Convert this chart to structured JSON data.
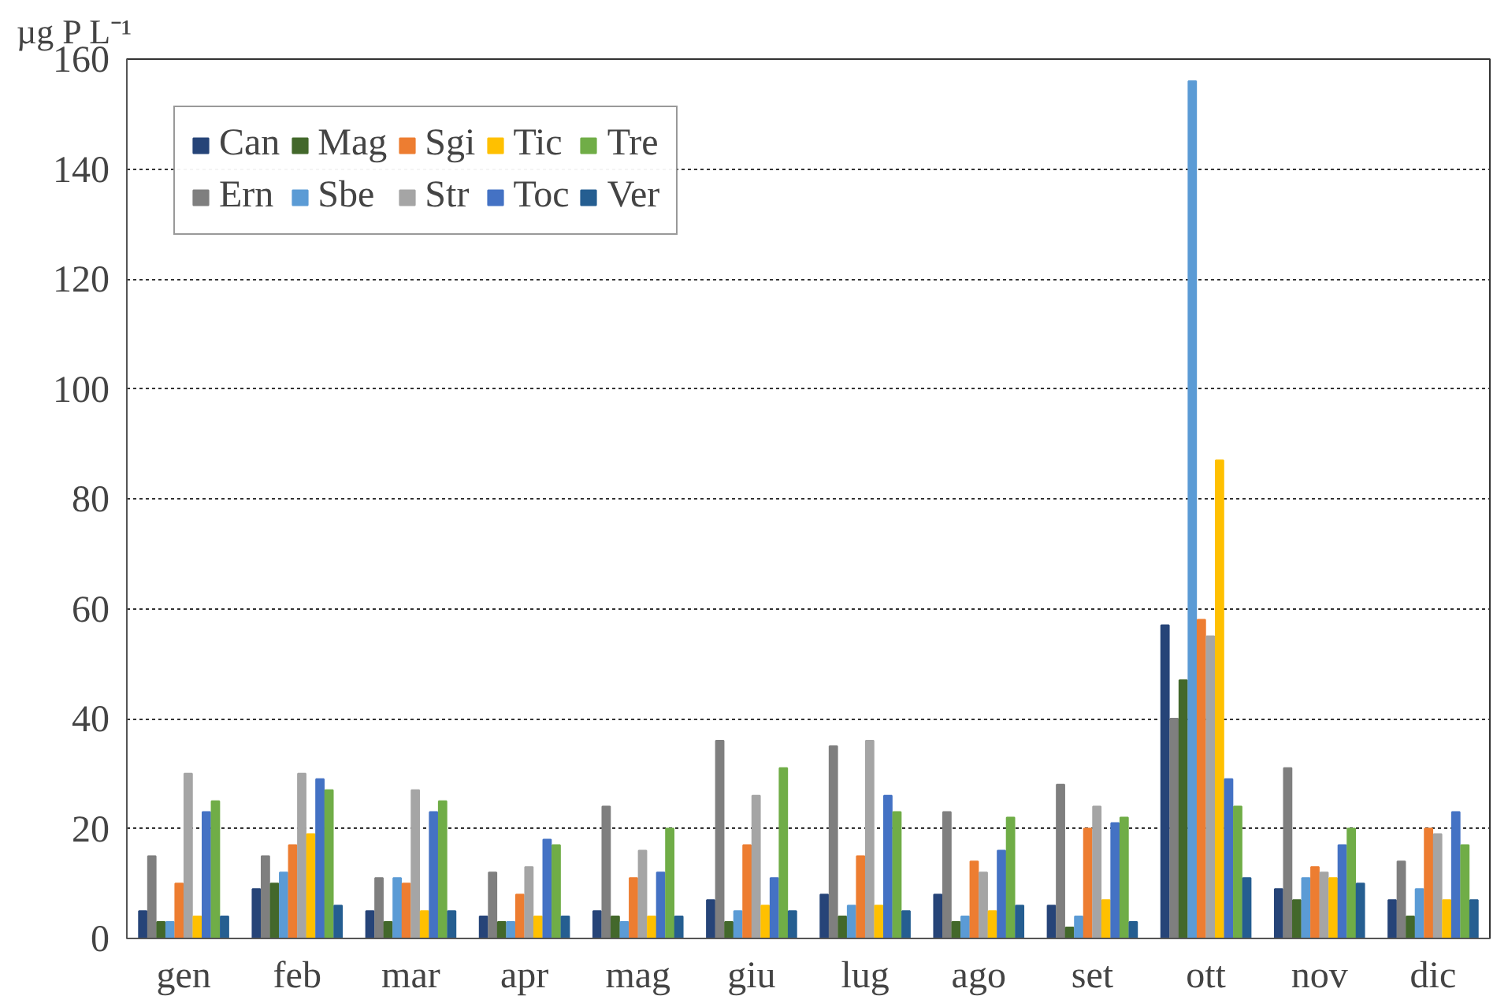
{
  "chart_data": {
    "type": "bar",
    "ylabel": "µg P L⁻¹",
    "categories": [
      "gen",
      "feb",
      "mar",
      "apr",
      "mag",
      "giu",
      "lug",
      "ago",
      "set",
      "ott",
      "nov",
      "dic"
    ],
    "series": [
      {
        "name": "Can",
        "color": "#264478",
        "values": [
          5,
          9,
          5,
          4,
          5,
          7,
          8,
          8,
          6,
          57,
          9,
          7
        ]
      },
      {
        "name": "Ern",
        "color": "#7f7f7f",
        "values": [
          15,
          15,
          11,
          12,
          24,
          36,
          35,
          23,
          28,
          40,
          31,
          14
        ]
      },
      {
        "name": "Mag",
        "color": "#43682b",
        "values": [
          3,
          10,
          3,
          3,
          4,
          3,
          4,
          3,
          2,
          47,
          7,
          4
        ]
      },
      {
        "name": "Sbe",
        "color": "#5b9bd5",
        "values": [
          3,
          12,
          11,
          3,
          3,
          5,
          6,
          4,
          4,
          156,
          11,
          9
        ]
      },
      {
        "name": "Sgi",
        "color": "#ed7d31",
        "values": [
          10,
          17,
          10,
          8,
          11,
          17,
          15,
          14,
          20,
          58,
          13,
          20
        ]
      },
      {
        "name": "Str",
        "color": "#a5a5a5",
        "values": [
          30,
          30,
          27,
          13,
          16,
          26,
          36,
          12,
          24,
          55,
          12,
          19
        ]
      },
      {
        "name": "Tic",
        "color": "#ffc000",
        "values": [
          4,
          19,
          5,
          4,
          4,
          6,
          6,
          5,
          7,
          87,
          11,
          7
        ]
      },
      {
        "name": "Toc",
        "color": "#4472c4",
        "values": [
          23,
          29,
          23,
          18,
          12,
          11,
          26,
          16,
          21,
          29,
          17,
          23
        ]
      },
      {
        "name": "Tre",
        "color": "#70ad47",
        "values": [
          25,
          27,
          25,
          17,
          20,
          31,
          23,
          22,
          22,
          24,
          20,
          17
        ]
      },
      {
        "name": "Ver",
        "color": "#255e91",
        "values": [
          4,
          6,
          5,
          4,
          4,
          5,
          5,
          6,
          3,
          11,
          10,
          7
        ]
      }
    ],
    "ylim": [
      0,
      160
    ],
    "yticks": [
      0,
      20,
      40,
      60,
      80,
      100,
      120,
      140,
      160
    ],
    "grid": "y",
    "legend": "top left"
  }
}
